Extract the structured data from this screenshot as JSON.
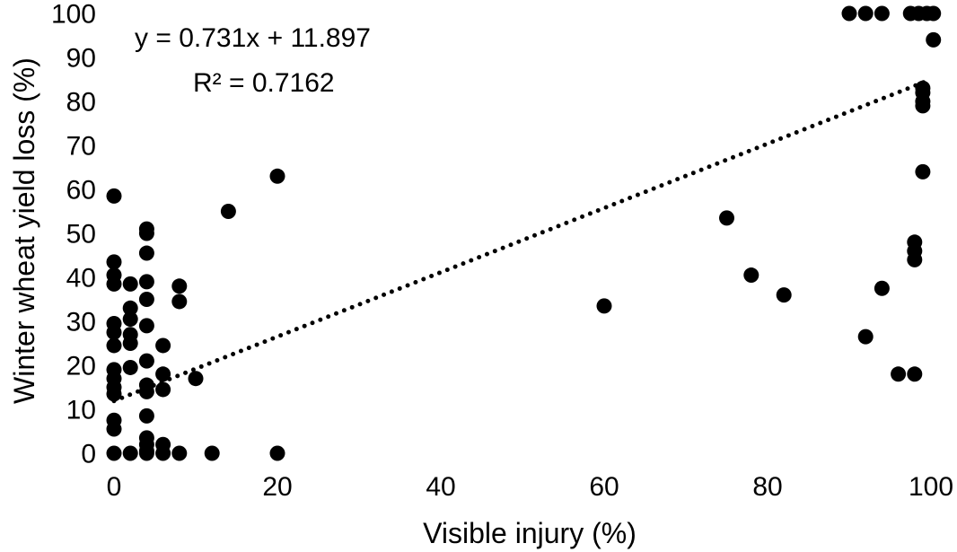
{
  "chart_data": {
    "type": "scatter",
    "xlabel": "Visible injury (%)",
    "ylabel": "Winter wheat yield loss (%)",
    "xlim": [
      0,
      100
    ],
    "ylim": [
      0,
      100
    ],
    "xticks": [
      0,
      20,
      40,
      60,
      80,
      100
    ],
    "yticks": [
      0,
      10,
      20,
      30,
      40,
      50,
      60,
      70,
      80,
      90,
      100
    ],
    "grid": false,
    "legend": "none",
    "point_color": "#000000",
    "trendline": {
      "style": "dotted",
      "slope": 0.731,
      "intercept": 11.897,
      "x_range": [
        0,
        100
      ],
      "equation_label": "y = 0.731x + 11.897",
      "r2_label": "R² = 0.7162"
    },
    "series": [
      {
        "points": [
          [
            0,
            58.5
          ],
          [
            0,
            43.5
          ],
          [
            0,
            40.5
          ],
          [
            0,
            38.5
          ],
          [
            0,
            29.5
          ],
          [
            0,
            27.5
          ],
          [
            0,
            24.5
          ],
          [
            0,
            19
          ],
          [
            0,
            17
          ],
          [
            0,
            15
          ],
          [
            0,
            13.5
          ],
          [
            0,
            7.5
          ],
          [
            0,
            5.5
          ],
          [
            0,
            0
          ],
          [
            2,
            38.5
          ],
          [
            2,
            33
          ],
          [
            2,
            30.5
          ],
          [
            2,
            27
          ],
          [
            2,
            25
          ],
          [
            2,
            19.5
          ],
          [
            2,
            0
          ],
          [
            4,
            51
          ],
          [
            4,
            50
          ],
          [
            4,
            45.5
          ],
          [
            4,
            39
          ],
          [
            4,
            35
          ],
          [
            4,
            29
          ],
          [
            4,
            21
          ],
          [
            4,
            15.5
          ],
          [
            4,
            14
          ],
          [
            4,
            8.5
          ],
          [
            4,
            3.5
          ],
          [
            4,
            2
          ],
          [
            4,
            0.5
          ],
          [
            4,
            0
          ],
          [
            6,
            24.5
          ],
          [
            6,
            18
          ],
          [
            6,
            14.5
          ],
          [
            6,
            2
          ],
          [
            6,
            0
          ],
          [
            8,
            38
          ],
          [
            8,
            34.5
          ],
          [
            8,
            0
          ],
          [
            10,
            17
          ],
          [
            12,
            0
          ],
          [
            14,
            55
          ],
          [
            20,
            63
          ],
          [
            20,
            0
          ],
          [
            60,
            33.5
          ],
          [
            75,
            53.5
          ],
          [
            78,
            40.5
          ],
          [
            82,
            36
          ],
          [
            90,
            100
          ],
          [
            92,
            100
          ],
          [
            94,
            100
          ],
          [
            92,
            26.5
          ],
          [
            94,
            37.5
          ],
          [
            96,
            18
          ],
          [
            97.5,
            100
          ],
          [
            98.5,
            100
          ],
          [
            99.5,
            100
          ],
          [
            100.3,
            100
          ],
          [
            100.3,
            94
          ],
          [
            99,
            83
          ],
          [
            99,
            82
          ],
          [
            99,
            80
          ],
          [
            99,
            79
          ],
          [
            99,
            64
          ],
          [
            98,
            48
          ],
          [
            98,
            46
          ],
          [
            98,
            44
          ],
          [
            98,
            18
          ]
        ]
      }
    ]
  }
}
